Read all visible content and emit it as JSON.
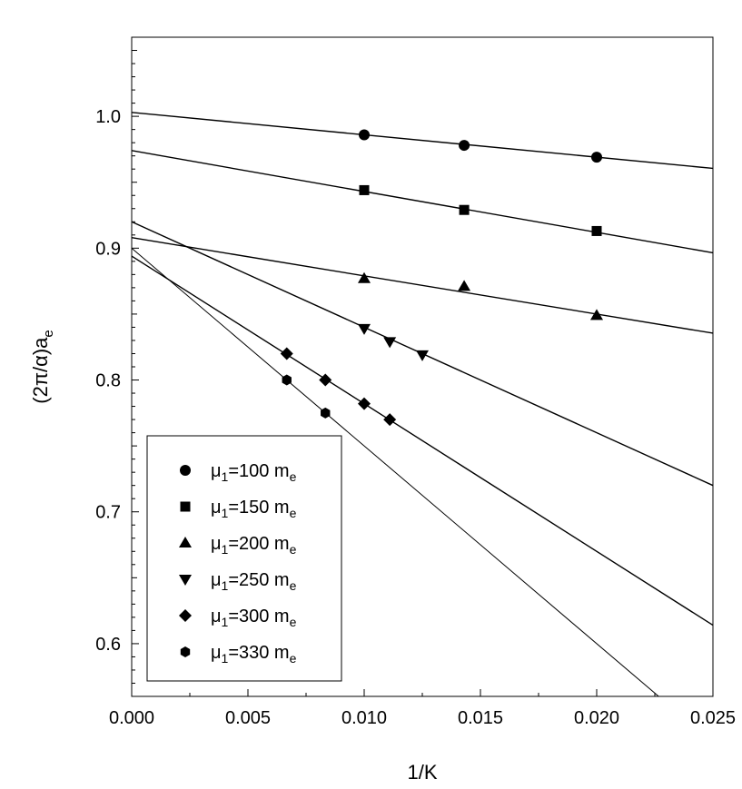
{
  "chart_data": {
    "type": "scatter",
    "xlabel": "1/K",
    "ylabel_parts": {
      "base": "(2π/α)a",
      "sub": "e"
    },
    "xlim": [
      0.0,
      0.025
    ],
    "ylim": [
      0.56,
      1.06
    ],
    "x_ticks": [
      0.0,
      0.005,
      0.01,
      0.015,
      0.02,
      0.025
    ],
    "x_tick_labels": [
      "0.000",
      "0.005",
      "0.010",
      "0.015",
      "0.020",
      "0.025"
    ],
    "y_ticks": [
      0.6,
      0.7,
      0.8,
      0.9,
      1.0
    ],
    "y_tick_labels": [
      "0.6",
      "0.7",
      "0.8",
      "0.9",
      "1.0"
    ],
    "grid": false,
    "legend_position": "bottom-left",
    "series": [
      {
        "legend_parts": {
          "mu": "μ",
          "sub": "1",
          "text": "=100 m",
          "unit_sub": "e"
        },
        "marker": "circle",
        "points": [
          [
            0.01,
            0.986
          ],
          [
            0.0143,
            0.978
          ],
          [
            0.02,
            0.969
          ]
        ],
        "fit": {
          "intercept": 1.003,
          "slope": -1.7,
          "x_end": 0.025
        }
      },
      {
        "legend_parts": {
          "mu": "μ",
          "sub": "1",
          "text": "=150 m",
          "unit_sub": "e"
        },
        "marker": "square",
        "points": [
          [
            0.01,
            0.944
          ],
          [
            0.0143,
            0.929
          ],
          [
            0.02,
            0.913
          ]
        ],
        "fit": {
          "intercept": 0.974,
          "slope": -3.1,
          "x_end": 0.025
        }
      },
      {
        "legend_parts": {
          "mu": "μ",
          "sub": "1",
          "text": "=200 m",
          "unit_sub": "e"
        },
        "marker": "triangle-up",
        "points": [
          [
            0.01,
            0.877
          ],
          [
            0.0143,
            0.871
          ],
          [
            0.02,
            0.849
          ]
        ],
        "fit": {
          "intercept": 0.908,
          "slope": -2.9,
          "x_end": 0.025
        }
      },
      {
        "legend_parts": {
          "mu": "μ",
          "sub": "1",
          "text": "=250 m",
          "unit_sub": "e"
        },
        "marker": "triangle-down",
        "points": [
          [
            0.01,
            0.839
          ],
          [
            0.0111,
            0.829
          ],
          [
            0.0125,
            0.819
          ]
        ],
        "fit": {
          "intercept": 0.92,
          "slope": -8.0,
          "x_end": 0.025
        }
      },
      {
        "legend_parts": {
          "mu": "μ",
          "sub": "1",
          "text": "=300 m",
          "unit_sub": "e"
        },
        "marker": "diamond",
        "points": [
          [
            0.00667,
            0.82
          ],
          [
            0.00833,
            0.8
          ],
          [
            0.01,
            0.782
          ],
          [
            0.0111,
            0.77
          ]
        ],
        "fit": {
          "intercept": 0.894,
          "slope": -11.2,
          "x_end": 0.025
        }
      },
      {
        "legend_parts": {
          "mu": "μ",
          "sub": "1",
          "text": "=330 m",
          "unit_sub": "e"
        },
        "marker": "hexagon",
        "points": [
          [
            0.00667,
            0.8
          ],
          [
            0.00833,
            0.775
          ]
        ],
        "fit": {
          "intercept": 0.9,
          "slope": -15.0,
          "x_end": 0.02267
        }
      }
    ]
  }
}
